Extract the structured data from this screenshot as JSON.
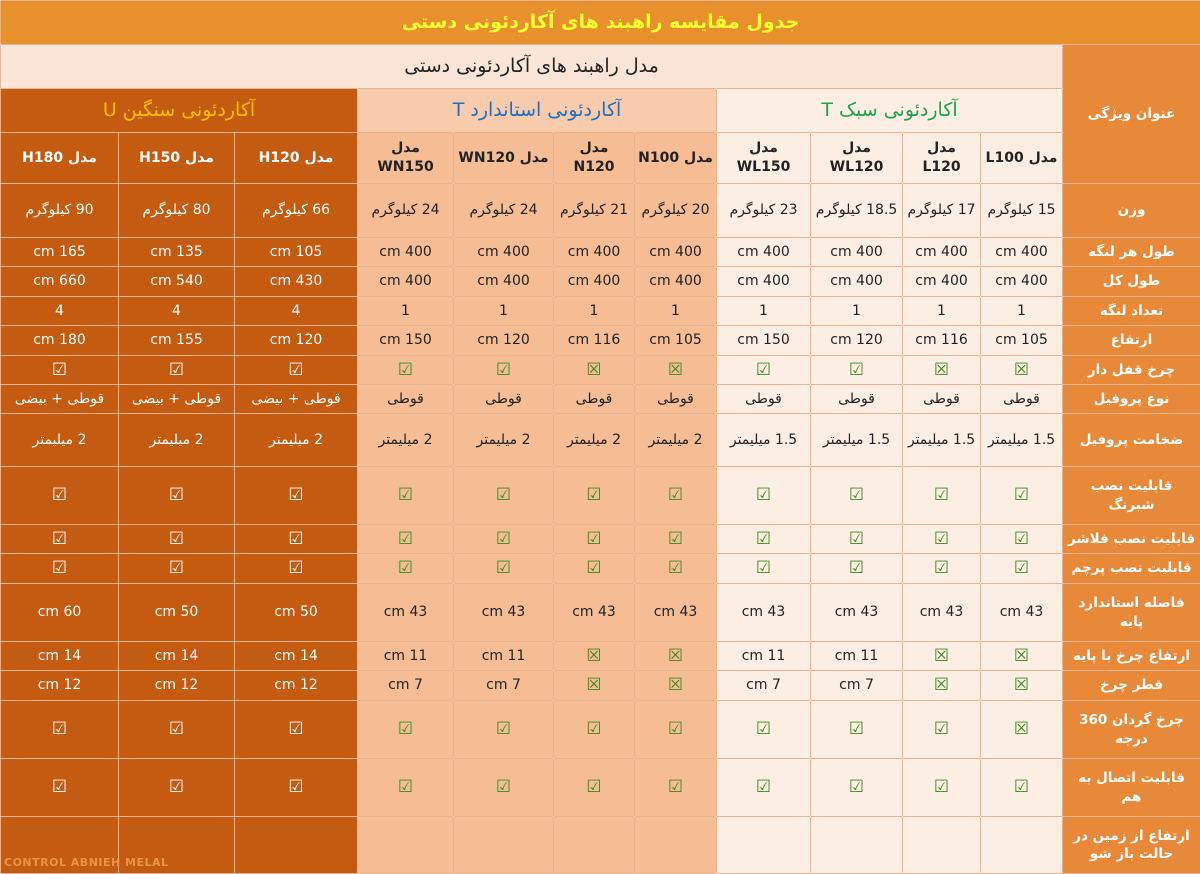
{
  "title": "جدول مقایسه راهبند های آکاردئونی دستی",
  "header": {
    "feature_label": "عنوان ویژگی",
    "models_label": "مدل راهبند های آکاردئونی  دستی"
  },
  "groups": [
    {
      "name": "آکاردئونی سبک T",
      "models": [
        "مدل L100",
        "مدل L120",
        "مدل WL120",
        "مدل WL150"
      ]
    },
    {
      "name": "آکاردئونی استاندارد T",
      "models": [
        "مدل N100",
        "مدل N120",
        "مدل WN120",
        "مدل WN150"
      ]
    },
    {
      "name": "آکاردئونی سنگین U",
      "models": [
        "مدل H120",
        "مدل H150",
        "مدل H180"
      ]
    }
  ],
  "rows": [
    {
      "label": "وزن",
      "cells": [
        "15 کیلوگرم",
        "17 کیلوگرم",
        "18.5 کیلوگرم",
        "23 کیلوگرم",
        "20 کیلوگرم",
        "21 کیلوگرم",
        "24 کیلوگرم",
        "24 کیلوگرم",
        "66 کیلوگرم",
        "80 کیلوگرم",
        "90 کیلوگرم"
      ]
    },
    {
      "label": "طول هر لنگه",
      "cells": [
        "400  cm",
        "400  cm",
        "400  cm",
        "400  cm",
        "400  cm",
        "400  cm",
        "400  cm",
        "400  cm",
        "105 cm",
        "135 cm",
        "165 cm"
      ]
    },
    {
      "label": "طول کل",
      "cells": [
        "400  cm",
        "400  cm",
        "400  cm",
        "400  cm",
        "400  cm",
        "400  cm",
        "400  cm",
        "400  cm",
        "430 cm",
        "540 cm",
        "660 cm"
      ]
    },
    {
      "label": "تعداد لنگه",
      "cells": [
        1,
        1,
        1,
        1,
        1,
        1,
        1,
        1,
        4,
        4,
        4
      ]
    },
    {
      "label": "ارتفاع",
      "cells": [
        "105 cm",
        "116 cm",
        "120 cm",
        "150 cm",
        "105 cm",
        "116 cm",
        "120 cm",
        "150 cm",
        "120 cm",
        "155 cm",
        "180 cm"
      ]
    },
    {
      "label": "چرخ قفل دار",
      "cells": [
        "☒",
        "☒",
        "☑",
        "☑",
        "☒",
        "☒",
        "☑",
        "☑",
        "☑",
        "☑",
        "☑"
      ]
    },
    {
      "label": "نوع پروفیل",
      "cells": [
        "قوطی",
        "قوطی",
        "قوطی",
        "قوطی",
        "قوطی",
        "قوطی",
        "قوطی",
        "قوطی",
        "قوطی + بیضی",
        "قوطی + بیضی",
        "قوطی + بیضی"
      ]
    },
    {
      "label": "ضخامت پروفیل",
      "cells": [
        "1.5 میلیمتر",
        "1.5 میلیمتر",
        "1.5 میلیمتر",
        "1.5 میلیمتر",
        "2 میلیمتر",
        "2 میلیمتر",
        "2 میلیمتر",
        "2 میلیمتر",
        "2 میلیمتر",
        "2 میلیمتر",
        "2 میلیمتر"
      ]
    },
    {
      "label": "قابلیت نصب شبرنگ",
      "cells": [
        "☑",
        "☑",
        "☑",
        "☑",
        "☑",
        "☑",
        "☑",
        "☑",
        "☑",
        "☑",
        "☑"
      ]
    },
    {
      "label": "قابلیت نصب فلاشر",
      "cells": [
        "☑",
        "☑",
        "☑",
        "☑",
        "☑",
        "☑",
        "☑",
        "☑",
        "☑",
        "☑",
        "☑"
      ]
    },
    {
      "label": "قابلیت نصب پرچم",
      "cells": [
        "☑",
        "☑",
        "☑",
        "☑",
        "☑",
        "☑",
        "☑",
        "☑",
        "☑",
        "☑",
        "☑"
      ]
    },
    {
      "label": "فاصله استاندارد پایه",
      "cells": [
        "43 cm",
        "43 cm",
        "43 cm",
        "43 cm",
        "43 cm",
        "43 cm",
        "43 cm",
        "43 cm",
        "50 cm",
        "50 cm",
        "60 cm"
      ]
    },
    {
      "label": "ارتفاع چرخ با پایه",
      "cells": [
        "☒",
        "☒",
        "11 cm",
        "11 cm",
        "☒",
        "☒",
        "11 cm",
        "11 cm",
        "14 cm",
        "14 cm",
        "14 cm"
      ]
    },
    {
      "label": "قطر چرخ",
      "cells": [
        "☒",
        "☒",
        "7 cm",
        "7 cm",
        "☒",
        "☒",
        "7 cm",
        "7 cm",
        "12 cm",
        "12 cm",
        "12 cm"
      ]
    },
    {
      "label": "چرخ گردان 360 درجه",
      "cells": [
        "☒",
        "☑",
        "☑",
        "☑",
        "☑",
        "☑",
        "☑",
        "☑",
        "☑",
        "☑",
        "☑"
      ]
    },
    {
      "label": "قابلیت اتصال به هم",
      "cells": [
        "☑",
        "☑",
        "☑",
        "☑",
        "☑",
        "☑",
        "☑",
        "☑",
        "☑",
        "☑",
        "☑"
      ]
    },
    {
      "label": "ارتفاع از زمین در حالت باز شو",
      "cells": [
        null,
        null,
        null,
        null,
        null,
        null,
        null,
        null,
        null,
        null,
        null
      ]
    }
  ],
  "watermark": "CONTROL ABNIEH MELAL"
}
